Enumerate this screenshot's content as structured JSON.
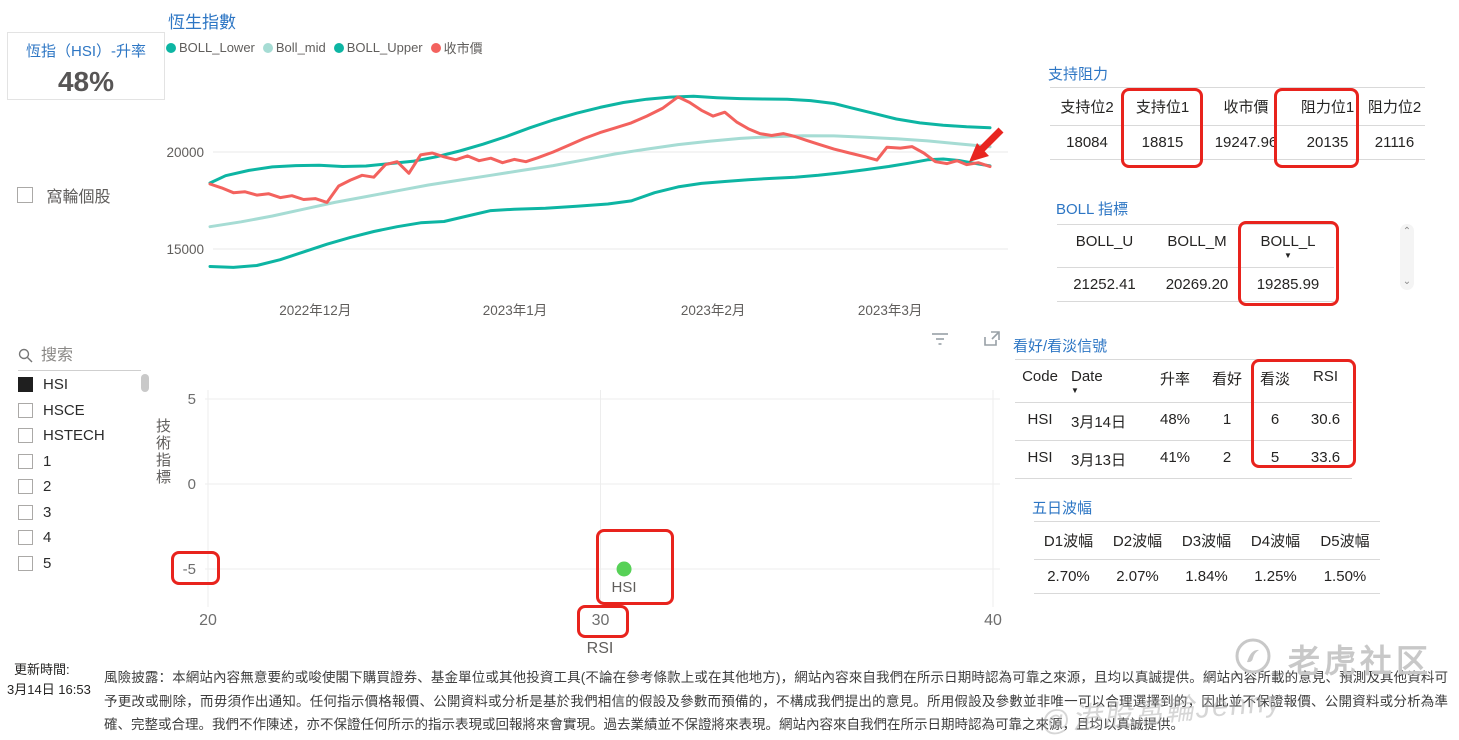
{
  "kpi_card": {
    "title": "恆指（HSI）-升率",
    "value": "48%"
  },
  "warrant_checkbox": {
    "label": "窩輪個股",
    "checked": false
  },
  "slicer": {
    "search_placeholder": "搜索",
    "items": [
      {
        "label": "HSI",
        "checked": true
      },
      {
        "label": "HSCE",
        "checked": false
      },
      {
        "label": "HSTECH",
        "checked": false
      },
      {
        "label": "1",
        "checked": false
      },
      {
        "label": "2",
        "checked": false
      },
      {
        "label": "3",
        "checked": false
      },
      {
        "label": "4",
        "checked": false
      },
      {
        "label": "5",
        "checked": false
      }
    ]
  },
  "chart_data": [
    {
      "type": "line",
      "title": "恆生指數",
      "x_axis": {
        "ticks": [
          {
            "label": "2022年12月",
            "pos": 0.135
          },
          {
            "label": "2023年1月",
            "pos": 0.391
          },
          {
            "label": "2023年2月",
            "pos": 0.645
          },
          {
            "label": "2023年3月",
            "pos": 0.872
          }
        ]
      },
      "y_axis": {
        "ticks": [
          20000,
          15000
        ],
        "range": [
          13500,
          23900
        ]
      },
      "series": [
        {
          "name": "BOLL_Lower",
          "color": "#0DB5A3",
          "points": [
            [
              0,
              14100
            ],
            [
              0.03,
              14050
            ],
            [
              0.06,
              14150
            ],
            [
              0.09,
              14450
            ],
            [
              0.12,
              14850
            ],
            [
              0.15,
              15250
            ],
            [
              0.18,
              15600
            ],
            [
              0.21,
              15900
            ],
            [
              0.24,
              16150
            ],
            [
              0.27,
              16350
            ],
            [
              0.3,
              16420
            ],
            [
              0.33,
              16700
            ],
            [
              0.36,
              16980
            ],
            [
              0.39,
              17050
            ],
            [
              0.43,
              17100
            ],
            [
              0.47,
              17200
            ],
            [
              0.51,
              17320
            ],
            [
              0.54,
              17480
            ],
            [
              0.57,
              17900
            ],
            [
              0.6,
              18200
            ],
            [
              0.63,
              18380
            ],
            [
              0.66,
              18480
            ],
            [
              0.69,
              18570
            ],
            [
              0.72,
              18640
            ],
            [
              0.75,
              18700
            ],
            [
              0.78,
              18800
            ],
            [
              0.81,
              18930
            ],
            [
              0.84,
              19080
            ],
            [
              0.87,
              19250
            ],
            [
              0.895,
              19420
            ],
            [
              0.92,
              19600
            ],
            [
              0.94,
              19640
            ],
            [
              0.96,
              19560
            ],
            [
              0.98,
              19420
            ],
            [
              1,
              19286
            ]
          ]
        },
        {
          "name": "Boll_mid",
          "color": "#A6DCD4",
          "points": [
            [
              0,
              16150
            ],
            [
              0.04,
              16400
            ],
            [
              0.08,
              16700
            ],
            [
              0.12,
              17050
            ],
            [
              0.16,
              17400
            ],
            [
              0.2,
              17700
            ],
            [
              0.24,
              18000
            ],
            [
              0.28,
              18300
            ],
            [
              0.32,
              18550
            ],
            [
              0.36,
              18800
            ],
            [
              0.4,
              19050
            ],
            [
              0.44,
              19300
            ],
            [
              0.48,
              19600
            ],
            [
              0.52,
              19900
            ],
            [
              0.56,
              20150
            ],
            [
              0.6,
              20380
            ],
            [
              0.64,
              20550
            ],
            [
              0.68,
              20700
            ],
            [
              0.72,
              20790
            ],
            [
              0.76,
              20840
            ],
            [
              0.8,
              20830
            ],
            [
              0.84,
              20760
            ],
            [
              0.88,
              20680
            ],
            [
              0.92,
              20570
            ],
            [
              0.96,
              20420
            ],
            [
              1,
              20269
            ]
          ]
        },
        {
          "name": "BOLL_Upper",
          "color": "#0DB5A3",
          "points": [
            [
              0,
              18400
            ],
            [
              0.02,
              18780
            ],
            [
              0.05,
              19050
            ],
            [
              0.08,
              19230
            ],
            [
              0.11,
              19300
            ],
            [
              0.14,
              19320
            ],
            [
              0.17,
              19250
            ],
            [
              0.2,
              19280
            ],
            [
              0.23,
              19400
            ],
            [
              0.26,
              19520
            ],
            [
              0.29,
              19750
            ],
            [
              0.32,
              20050
            ],
            [
              0.35,
              20400
            ],
            [
              0.38,
              20800
            ],
            [
              0.41,
              21250
            ],
            [
              0.44,
              21650
            ],
            [
              0.47,
              22000
            ],
            [
              0.5,
              22300
            ],
            [
              0.53,
              22550
            ],
            [
              0.56,
              22720
            ],
            [
              0.59,
              22830
            ],
            [
              0.62,
              22870
            ],
            [
              0.65,
              22800
            ],
            [
              0.68,
              22750
            ],
            [
              0.71,
              22730
            ],
            [
              0.74,
              22720
            ],
            [
              0.77,
              22650
            ],
            [
              0.8,
              22500
            ],
            [
              0.82,
              22300
            ],
            [
              0.85,
              22000
            ],
            [
              0.88,
              21700
            ],
            [
              0.91,
              21500
            ],
            [
              0.94,
              21380
            ],
            [
              0.97,
              21300
            ],
            [
              1,
              21252
            ]
          ]
        },
        {
          "name": "收市價",
          "color": "#F3625E",
          "points": [
            [
              0,
              18350
            ],
            [
              0.015,
              18150
            ],
            [
              0.03,
              17900
            ],
            [
              0.045,
              17950
            ],
            [
              0.06,
              17780
            ],
            [
              0.075,
              17850
            ],
            [
              0.09,
              17650
            ],
            [
              0.105,
              17750
            ],
            [
              0.12,
              17550
            ],
            [
              0.135,
              17600
            ],
            [
              0.15,
              17400
            ],
            [
              0.165,
              18250
            ],
            [
              0.18,
              18550
            ],
            [
              0.195,
              18800
            ],
            [
              0.21,
              18700
            ],
            [
              0.225,
              19350
            ],
            [
              0.24,
              19500
            ],
            [
              0.255,
              18900
            ],
            [
              0.27,
              19850
            ],
            [
              0.285,
              19950
            ],
            [
              0.3,
              19750
            ],
            [
              0.315,
              19600
            ],
            [
              0.33,
              19800
            ],
            [
              0.345,
              19550
            ],
            [
              0.36,
              19680
            ],
            [
              0.375,
              19450
            ],
            [
              0.39,
              19620
            ],
            [
              0.405,
              19500
            ],
            [
              0.42,
              19700
            ],
            [
              0.44,
              20000
            ],
            [
              0.46,
              20350
            ],
            [
              0.48,
              20700
            ],
            [
              0.5,
              21000
            ],
            [
              0.52,
              21250
            ],
            [
              0.54,
              21500
            ],
            [
              0.56,
              21850
            ],
            [
              0.58,
              22250
            ],
            [
              0.6,
              22840
            ],
            [
              0.615,
              22550
            ],
            [
              0.63,
              22150
            ],
            [
              0.645,
              21850
            ],
            [
              0.66,
              22050
            ],
            [
              0.675,
              21550
            ],
            [
              0.69,
              21200
            ],
            [
              0.705,
              20950
            ],
            [
              0.72,
              20850
            ],
            [
              0.735,
              20950
            ],
            [
              0.75,
              20800
            ],
            [
              0.765,
              20600
            ],
            [
              0.78,
              20400
            ],
            [
              0.8,
              20150
            ],
            [
              0.82,
              19950
            ],
            [
              0.84,
              19750
            ],
            [
              0.855,
              19580
            ],
            [
              0.868,
              20250
            ],
            [
              0.885,
              20200
            ],
            [
              0.9,
              20280
            ],
            [
              0.915,
              19950
            ],
            [
              0.93,
              19500
            ],
            [
              0.945,
              19400
            ],
            [
              0.958,
              19550
            ],
            [
              0.97,
              19350
            ],
            [
              0.985,
              19450
            ],
            [
              1,
              19248
            ]
          ]
        }
      ],
      "annotation": "red arrow pointing at latest close meeting lower band"
    },
    {
      "type": "scatter",
      "xlabel": "RSI",
      "ylabel": "技術指標",
      "xlim": [
        20,
        40
      ],
      "xticks": [
        20,
        30,
        40
      ],
      "yticks": [
        5,
        0,
        -5
      ],
      "points": [
        {
          "label": "HSI",
          "x": 30.6,
          "y": -5,
          "color": "#57D157"
        }
      ]
    }
  ],
  "support_resistance": {
    "title": "支持阻力",
    "columns": [
      {
        "label": "支持位2"
      },
      {
        "label": "支持位1"
      },
      {
        "label": "收市價"
      },
      {
        "label": "阻力位1"
      },
      {
        "label": "阻力位2"
      }
    ],
    "rows": [
      [
        "18084",
        "18815",
        "19247.96",
        "20135",
        "21116"
      ]
    ]
  },
  "boll": {
    "title": "BOLL 指標",
    "columns": [
      {
        "label": "BOLL_U"
      },
      {
        "label": "BOLL_M"
      },
      {
        "label": "BOLL_L",
        "sorted": "desc"
      }
    ],
    "rows": [
      [
        "21252.41",
        "20269.20",
        "19285.99"
      ]
    ]
  },
  "signals": {
    "title": "看好/看淡信號",
    "columns": [
      {
        "label": "Code"
      },
      {
        "label": "Date",
        "sorted": "desc"
      },
      {
        "label": "升率"
      },
      {
        "label": "看好"
      },
      {
        "label": "看淡"
      },
      {
        "label": "RSI"
      }
    ],
    "rows": [
      [
        "HSI",
        "3月14日",
        "48%",
        "1",
        "6",
        "30.6"
      ],
      [
        "HSI",
        "3月13日",
        "41%",
        "2",
        "5",
        "33.6"
      ]
    ]
  },
  "volatility": {
    "title": "五日波幅",
    "columns": [
      {
        "label": "D1波幅"
      },
      {
        "label": "D2波幅"
      },
      {
        "label": "D3波幅"
      },
      {
        "label": "D4波幅"
      },
      {
        "label": "D5波幅"
      }
    ],
    "rows": [
      [
        "2.70%",
        "2.07%",
        "1.84%",
        "1.25%",
        "1.50%"
      ]
    ]
  },
  "footer": {
    "update_label": "更新時間:",
    "update_time": "3月14日 16:53",
    "disclaimer": "風險披露：本網站內容無意要約或唆使閣下購買證券、基金單位或其他投資工具(不論在參考條款上或在其他地方)，網站內容來自我們在所示日期時認為可靠之來源，且均以真誠提供。網站內容所載的意見、預測及其他資料可予更改或刪除，而毋須作出通知。任何指示價格報價、公開資料或分析是基於我們相信的假設及參數而預備的，不構成我們提出的意見。所用假設及參數並非唯一可以合理選擇到的，因此並不保證報價、公開資料或分析為準確、完整或合理。我們不作陳述，亦不保證任何所示的指示表現或回報將來會實現。過去業績並不保證將來表現。網站內容來自我們在所示日期時認為可靠之來源，且均以真誠提供。"
  },
  "watermark": {
    "community": "老虎社区",
    "diagonal": "@港股窩輪Jenny"
  },
  "colors": {
    "title_blue": "#2D76C4",
    "teal": "#0DB5A3",
    "teal_light": "#A6DCD4",
    "close_red": "#F3625E",
    "annotation_red": "#E8231D",
    "point_green": "#57D157"
  }
}
